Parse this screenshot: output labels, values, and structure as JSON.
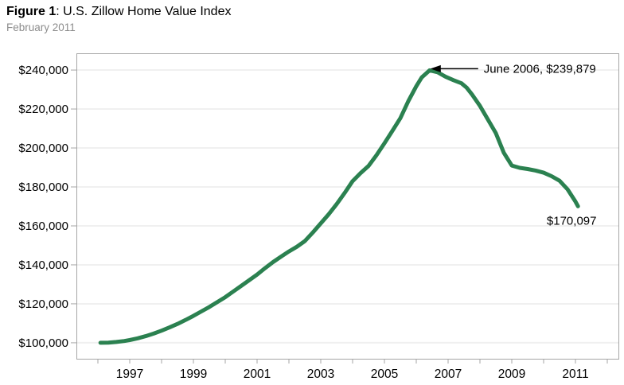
{
  "header": {
    "figure_label": "Figure 1",
    "title_rest": ": U.S. Zillow Home Value Index",
    "subtitle": "February 2011"
  },
  "chart_data": {
    "type": "line",
    "title": "Figure 1: U.S. Zillow Home Value Index",
    "subtitle": "February 2011",
    "grid": "horizontal-only",
    "legend_position": "none",
    "xlim": [
      1995.325,
      2012.35
    ],
    "ylim": [
      91800,
      248600
    ],
    "x_axis": {
      "tick_years": [
        1996,
        1997,
        1998,
        1999,
        2000,
        2001,
        2002,
        2003,
        2004,
        2005,
        2006,
        2007,
        2008,
        2009,
        2010,
        2011,
        2012
      ],
      "labeled_years": [
        "1997",
        "1999",
        "2001",
        "2003",
        "2005",
        "2007",
        "2009",
        "2011"
      ]
    },
    "y_axis": {
      "tick_values": [
        100000,
        120000,
        140000,
        160000,
        180000,
        200000,
        220000,
        240000
      ],
      "tick_labels": [
        "$100,000",
        "$120,000",
        "$140,000",
        "$160,000",
        "$180,000",
        "$200,000",
        "$220,000",
        "$240,000"
      ]
    },
    "series": [
      {
        "name": "U.S. Zillow Home Value Index",
        "points": [
          [
            1996.08,
            100000
          ],
          [
            1996.33,
            100100
          ],
          [
            1996.58,
            100400
          ],
          [
            1996.83,
            100900
          ],
          [
            1997.0,
            101400
          ],
          [
            1997.25,
            102300
          ],
          [
            1997.5,
            103400
          ],
          [
            1997.75,
            104700
          ],
          [
            1998.0,
            106200
          ],
          [
            1998.25,
            107900
          ],
          [
            1998.5,
            109700
          ],
          [
            1998.75,
            111700
          ],
          [
            1999.0,
            113800
          ],
          [
            1999.25,
            116100
          ],
          [
            1999.5,
            118400
          ],
          [
            1999.75,
            120900
          ],
          [
            2000.0,
            123400
          ],
          [
            2000.25,
            126300
          ],
          [
            2000.5,
            129200
          ],
          [
            2000.75,
            132100
          ],
          [
            2001.0,
            135000
          ],
          [
            2001.25,
            138300
          ],
          [
            2001.5,
            141400
          ],
          [
            2001.75,
            144200
          ],
          [
            2002.0,
            146900
          ],
          [
            2002.25,
            149300
          ],
          [
            2002.5,
            152200
          ],
          [
            2002.75,
            156600
          ],
          [
            2003.0,
            161300
          ],
          [
            2003.25,
            166000
          ],
          [
            2003.5,
            171200
          ],
          [
            2003.75,
            176900
          ],
          [
            2004.0,
            183000
          ],
          [
            2004.25,
            187100
          ],
          [
            2004.5,
            190800
          ],
          [
            2004.75,
            196300
          ],
          [
            2005.0,
            202400
          ],
          [
            2005.25,
            208800
          ],
          [
            2005.5,
            215300
          ],
          [
            2005.75,
            224000
          ],
          [
            2006.0,
            231700
          ],
          [
            2006.17,
            236200
          ],
          [
            2006.42,
            239879
          ],
          [
            2006.67,
            238900
          ],
          [
            2006.92,
            236600
          ],
          [
            2007.17,
            234800
          ],
          [
            2007.42,
            233200
          ],
          [
            2007.58,
            231000
          ],
          [
            2007.75,
            227500
          ],
          [
            2008.0,
            221600
          ],
          [
            2008.25,
            214600
          ],
          [
            2008.5,
            207600
          ],
          [
            2008.75,
            197500
          ],
          [
            2009.0,
            191000
          ],
          [
            2009.25,
            189800
          ],
          [
            2009.5,
            189200
          ],
          [
            2009.75,
            188400
          ],
          [
            2010.0,
            187300
          ],
          [
            2010.25,
            185500
          ],
          [
            2010.5,
            183200
          ],
          [
            2010.75,
            178800
          ],
          [
            2011.0,
            172500
          ],
          [
            2011.08,
            170097
          ]
        ]
      }
    ],
    "annotations": [
      {
        "id": "peak",
        "text": "June 2006, $239,879",
        "point_year": 2006.42,
        "point_value": 239879,
        "style": "arrow-left"
      },
      {
        "id": "current",
        "text": "$170,097",
        "point_year": 2011.08,
        "point_value": 170097,
        "style": "below"
      }
    ],
    "colors": {
      "line": "#2b8150",
      "grid": "#f0f0f0",
      "axis": "#a6a6a6",
      "text": "#000000",
      "subtitle_text": "#8c8c8c"
    }
  }
}
